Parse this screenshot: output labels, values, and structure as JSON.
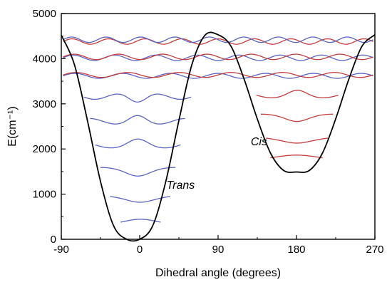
{
  "chart_data": {
    "type": "line",
    "title": "",
    "xlabel": "Dihedral angle (degrees)",
    "ylabel": "E(cm⁻¹)",
    "xlim": [
      -90,
      270
    ],
    "ylim": [
      0,
      5000
    ],
    "x_ticks": [
      -90,
      0,
      90,
      180,
      270
    ],
    "y_ticks": [
      0,
      1000,
      2000,
      3000,
      4000,
      5000
    ],
    "grid": false,
    "legend": "none",
    "annotations": [
      {
        "text": "Trans",
        "x": 47,
        "y": 1120
      },
      {
        "text": "Cis",
        "x": 137,
        "y": 2080
      }
    ],
    "series": [
      {
        "role": "potential",
        "color": "#000000",
        "x": [
          -90,
          -75,
          -60,
          -45,
          -30,
          -15,
          0,
          15,
          30,
          45,
          60,
          75,
          90,
          105,
          120,
          135,
          150,
          165,
          180,
          195,
          210,
          225,
          240,
          255,
          270
        ],
        "y": [
          4520,
          3873,
          2630,
          1283,
          301,
          0,
          0,
          301,
          1283,
          2630,
          3873,
          4520,
          4530,
          4270,
          3540,
          2666,
          1916,
          1528,
          1490,
          1528,
          1916,
          2666,
          3540,
          4270,
          4530
        ]
      }
    ],
    "wavefunctions": [
      {
        "well": "trans",
        "energy": 330,
        "x_range": [
          -22,
          24
        ],
        "nodes": 0,
        "amplitude": 120,
        "color": "#5b63c4"
      },
      {
        "well": "trans",
        "energy": 950,
        "x_range": [
          -34,
          35
        ],
        "nodes": 1,
        "amplitude": 130,
        "color": "#5b63c4"
      },
      {
        "well": "trans",
        "energy": 1530,
        "x_range": [
          -45,
          41
        ],
        "nodes": 2,
        "amplitude": 130,
        "color": "#5b63c4"
      },
      {
        "well": "trans",
        "energy": 2090,
        "x_range": [
          -51,
          47
        ],
        "nodes": 3,
        "amplitude": 130,
        "color": "#5b63c4"
      },
      {
        "well": "trans",
        "energy": 2620,
        "x_range": [
          -57,
          52
        ],
        "nodes": 4,
        "amplitude": 120,
        "color": "#5b63c4"
      },
      {
        "well": "trans",
        "energy": 3150,
        "x_range": [
          -64,
          59
        ],
        "nodes": 5,
        "amplitude": 110,
        "color": "#5b63c4"
      },
      {
        "well": "cis",
        "energy": 1760,
        "x_range": [
          150,
          210
        ],
        "nodes": 0,
        "amplitude": 110,
        "color": "#c43c3c"
      },
      {
        "well": "cis",
        "energy": 2240,
        "x_range": [
          145,
          216
        ],
        "nodes": 1,
        "amplitude": 110,
        "color": "#c43c3c"
      },
      {
        "well": "cis",
        "energy": 2720,
        "x_range": [
          139,
          222
        ],
        "nodes": 2,
        "amplitude": 110,
        "color": "#c43c3c"
      },
      {
        "well": "cis",
        "energy": 3190,
        "x_range": [
          134,
          228
        ],
        "nodes": 3,
        "amplitude": 110,
        "color": "#c43c3c"
      },
      {
        "well": "delocalized",
        "energy": 3620,
        "x_range": [
          -88,
          268
        ],
        "nodes": 12,
        "amplitude": 55,
        "color": "#5b63c4"
      },
      {
        "well": "delocalized",
        "energy": 3640,
        "x_range": [
          -88,
          268
        ],
        "nodes": 11,
        "amplitude": 55,
        "color": "#c43c3c"
      },
      {
        "well": "delocalized",
        "energy": 4020,
        "x_range": [
          -88,
          268
        ],
        "nodes": 14,
        "amplitude": 60,
        "color": "#5b63c4"
      },
      {
        "well": "delocalized",
        "energy": 4040,
        "x_range": [
          -88,
          268
        ],
        "nodes": 13,
        "amplitude": 60,
        "color": "#c43c3c"
      },
      {
        "well": "delocalized",
        "energy": 4380,
        "x_range": [
          -88,
          268
        ],
        "nodes": 16,
        "amplitude": 60,
        "color": "#c43c3c"
      },
      {
        "well": "delocalized",
        "energy": 4420,
        "x_range": [
          -88,
          268
        ],
        "nodes": 17,
        "amplitude": 60,
        "color": "#5b63c4"
      }
    ]
  }
}
